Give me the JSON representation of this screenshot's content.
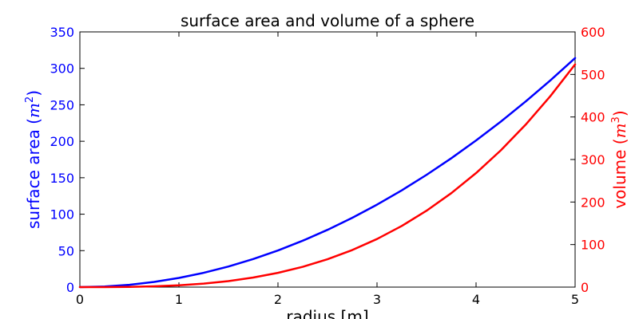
{
  "chart_data": {
    "type": "line",
    "title": "surface area and volume of a sphere",
    "xlabel": "radius [m]",
    "x": [
      0,
      0.25,
      0.5,
      0.75,
      1,
      1.25,
      1.5,
      1.75,
      2,
      2.25,
      2.5,
      2.75,
      3,
      3.25,
      3.5,
      3.75,
      4,
      4.25,
      4.5,
      4.75,
      5
    ],
    "xlim": [
      0,
      5
    ],
    "xticks": [
      "0",
      "1",
      "2",
      "3",
      "4",
      "5"
    ],
    "left_axis": {
      "ylabel": "surface area (m²)",
      "ylabel_text": "surface area (",
      "ylabel_unit_base": "m",
      "ylabel_unit_exp": "2",
      "ylabel_close": ")",
      "ylim": [
        0,
        350
      ],
      "yticks": [
        "0",
        "50",
        "100",
        "150",
        "200",
        "250",
        "300",
        "350"
      ],
      "color": "#0000ff"
    },
    "right_axis": {
      "ylabel": "volume (m³)",
      "ylabel_text": "volume (",
      "ylabel_unit_base": "m",
      "ylabel_unit_exp": "3",
      "ylabel_close": ")",
      "ylim": [
        0,
        600
      ],
      "yticks": [
        "0",
        "100",
        "200",
        "300",
        "400",
        "500",
        "600"
      ],
      "color": "#ff0000"
    },
    "series": [
      {
        "axis": "left",
        "color": "#0000ff",
        "values": [
          0,
          0.79,
          3.14,
          7.07,
          12.57,
          19.63,
          28.27,
          38.48,
          50.27,
          63.62,
          78.54,
          95.03,
          113.1,
          132.73,
          153.94,
          176.71,
          201.06,
          226.98,
          254.47,
          283.53,
          314.16
        ]
      },
      {
        "axis": "right",
        "color": "#ff0000",
        "values": [
          0,
          0.07,
          0.52,
          1.77,
          4.19,
          8.18,
          14.14,
          22.45,
          33.51,
          47.71,
          65.45,
          87.11,
          113.1,
          143.8,
          179.59,
          220.89,
          268.08,
          321.56,
          381.7,
          448.92,
          523.6
        ]
      }
    ],
    "grid": false,
    "legend": "none"
  }
}
